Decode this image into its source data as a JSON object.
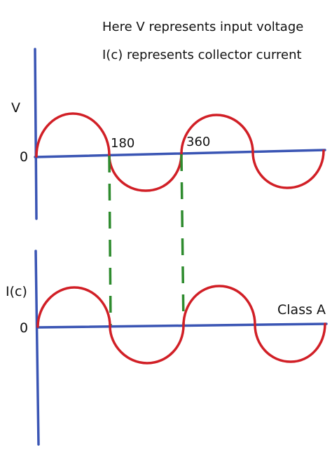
{
  "notes": {
    "line1": "Here V represents input voltage",
    "line2": "I(c) represents collector current"
  },
  "top_graph": {
    "y_label": "V",
    "origin_label": "0",
    "marker_180": "180",
    "marker_360": "360"
  },
  "bottom_graph": {
    "y_label": "I(c)",
    "origin_label": "0",
    "class_label": "Class A"
  },
  "colors": {
    "axis": "#3a55b4",
    "wave": "#d11f26",
    "guide": "#2e8b2e",
    "text": "#111111"
  }
}
